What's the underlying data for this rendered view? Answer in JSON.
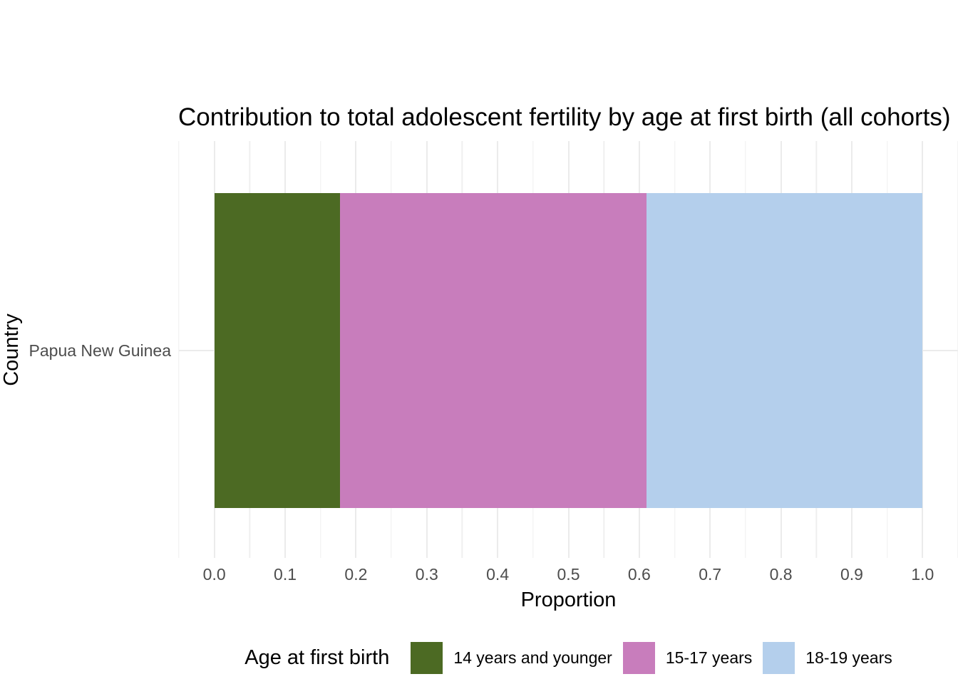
{
  "chart_data": {
    "type": "bar",
    "orientation": "horizontal_stacked",
    "title": "Contribution to total adolescent fertility by age at first birth (all cohorts)",
    "xlabel": "Proportion",
    "ylabel": "Country",
    "categories": [
      "Papua New Guinea"
    ],
    "series": [
      {
        "name": "14 years and younger",
        "values": [
          0.177
        ],
        "color": "#4c6a23"
      },
      {
        "name": "15-17 years",
        "values": [
          0.433
        ],
        "color": "#c87dbc"
      },
      {
        "name": "18-19 years",
        "values": [
          0.39
        ],
        "color": "#b4cfec"
      }
    ],
    "xlim": [
      -0.05,
      1.05
    ],
    "x_tick_values": [
      0.0,
      0.1,
      0.2,
      0.3,
      0.4,
      0.5,
      0.6,
      0.7,
      0.8,
      0.9,
      1.0
    ],
    "x_tick_labels": [
      "0.0",
      "0.1",
      "0.2",
      "0.3",
      "0.4",
      "0.5",
      "0.6",
      "0.7",
      "0.8",
      "0.9",
      "1.0"
    ],
    "x_minor_tick_values": [
      -0.05,
      0.05,
      0.15,
      0.25,
      0.35,
      0.45,
      0.55,
      0.65,
      0.75,
      0.85,
      0.95,
      1.05
    ],
    "grid": true,
    "legend": {
      "title": "Age at first birth",
      "position": "bottom"
    }
  },
  "colors": {
    "background": "#ffffff",
    "grid_major": "#ebebeb",
    "grid_minor": "#efefef",
    "tick_label": "#4d4d4d",
    "text": "#000000"
  }
}
